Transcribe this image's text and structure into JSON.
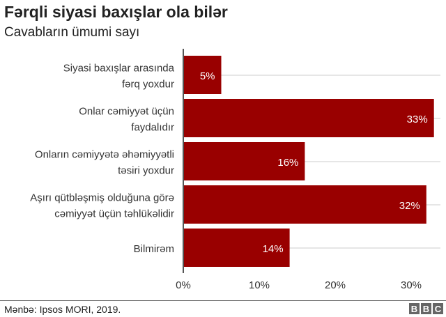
{
  "chart_data": {
    "type": "bar",
    "orientation": "horizontal",
    "title": "Fərqli siyasi baxışlar ola bilər",
    "subtitle": "Cavabların ümumi sayı",
    "categories": [
      [
        "Siyasi baxışlar arasında",
        "fərq yoxdur"
      ],
      [
        "Onlar cəmiyyət üçün",
        "faydalıdır"
      ],
      [
        "Onların cəmiyyətə əhəmiyyətli",
        "təsiri yoxdur"
      ],
      [
        "Aşırı qütbləşmiş olduğuna görə",
        "cəmiyyət üçün təhlükəlidir"
      ],
      [
        "Bilmirəm"
      ]
    ],
    "values": [
      5,
      33,
      16,
      32,
      14
    ],
    "data_labels": [
      "5%",
      "33%",
      "16%",
      "32%",
      "14%"
    ],
    "xlim": [
      0,
      34
    ],
    "xticks": [
      0,
      10,
      20,
      30
    ],
    "xtick_labels": [
      "0%",
      "10%",
      "20%",
      "30%"
    ],
    "bar_color": "#990000",
    "grid": true
  },
  "footer": {
    "source": "Mənbə: Ipsos MORI, 2019.",
    "logo": [
      "B",
      "B",
      "C"
    ]
  }
}
